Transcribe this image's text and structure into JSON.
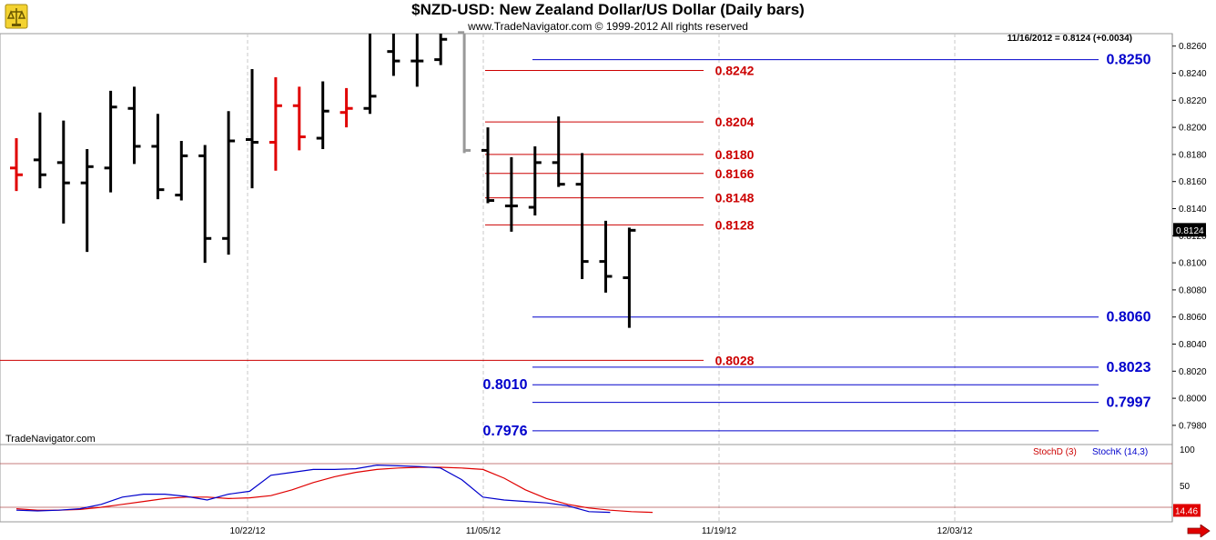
{
  "header": {
    "title": "$NZD-USD:  New Zealand Dollar/US Dollar  (Daily bars)",
    "subtitle": "www.TradeNavigator.com © 1999-2012 All rights reserved",
    "readout": "11/16/2012 = 0.8124 (+0.0034)"
  },
  "footer": {
    "credit": "TradeNavigator.com"
  },
  "legend": {
    "stoch_d": "StochD (3)",
    "stoch_k": "StochK (14,3)"
  },
  "colors": {
    "red_bar": "#e00000",
    "black_bar": "#000000",
    "red_level": "#cc0000",
    "blue_level": "#0000cc",
    "stoch_d": "#e00000",
    "stoch_k": "#0000cc"
  },
  "chart_data": {
    "type": "ohlc",
    "x_ticks": [
      "10/22/12",
      "11/05/12",
      "11/19/12",
      "12/03/12"
    ],
    "y_ticks": [
      "0.8260",
      "0.8240",
      "0.8220",
      "0.8200",
      "0.8180",
      "0.8160",
      "0.8140",
      "0.8120",
      "0.8100",
      "0.8080",
      "0.8060",
      "0.8040",
      "0.8020",
      "0.8000",
      "0.7980"
    ],
    "ylim": [
      0.7964,
      0.827
    ],
    "last_price": "0.8124",
    "bars": [
      {
        "date": "10/08/12",
        "o": 0.817,
        "h": 0.8192,
        "l": 0.8153,
        "c": 0.8165,
        "color": "red"
      },
      {
        "date": "10/09/12",
        "o": 0.8176,
        "h": 0.8211,
        "l": 0.8155,
        "c": 0.8165,
        "color": "black"
      },
      {
        "date": "10/10/12",
        "o": 0.8174,
        "h": 0.8205,
        "l": 0.8129,
        "c": 0.8159,
        "color": "black"
      },
      {
        "date": "10/11/12",
        "o": 0.8159,
        "h": 0.8184,
        "l": 0.8108,
        "c": 0.8171,
        "color": "black"
      },
      {
        "date": "10/12/12",
        "o": 0.817,
        "h": 0.8227,
        "l": 0.8152,
        "c": 0.8215,
        "color": "black"
      },
      {
        "date": "10/15/12",
        "o": 0.8214,
        "h": 0.823,
        "l": 0.8173,
        "c": 0.8186,
        "color": "black"
      },
      {
        "date": "10/16/12",
        "o": 0.8186,
        "h": 0.821,
        "l": 0.8147,
        "c": 0.8154,
        "color": "black"
      },
      {
        "date": "10/17/12",
        "o": 0.815,
        "h": 0.819,
        "l": 0.8146,
        "c": 0.8179,
        "color": "black"
      },
      {
        "date": "10/18/12",
        "o": 0.8179,
        "h": 0.8187,
        "l": 0.81,
        "c": 0.8118,
        "color": "black"
      },
      {
        "date": "10/19/12",
        "o": 0.8118,
        "h": 0.8212,
        "l": 0.8106,
        "c": 0.819,
        "color": "black"
      },
      {
        "date": "10/22/12",
        "o": 0.8191,
        "h": 0.8243,
        "l": 0.8155,
        "c": 0.8189,
        "color": "black"
      },
      {
        "date": "10/23/12",
        "o": 0.8189,
        "h": 0.8237,
        "l": 0.8168,
        "c": 0.8216,
        "color": "red"
      },
      {
        "date": "10/24/12",
        "o": 0.8216,
        "h": 0.823,
        "l": 0.8183,
        "c": 0.8193,
        "color": "red"
      },
      {
        "date": "10/25/12",
        "o": 0.8192,
        "h": 0.8234,
        "l": 0.8184,
        "c": 0.8212,
        "color": "black"
      },
      {
        "date": "10/26/12",
        "o": 0.8211,
        "h": 0.8229,
        "l": 0.82,
        "c": 0.8214,
        "color": "red"
      },
      {
        "date": "10/29/12",
        "o": 0.8214,
        "h": 0.827,
        "l": 0.821,
        "c": 0.8223,
        "color": "black"
      },
      {
        "date": "10/30/12",
        "o": 0.8256,
        "h": 0.827,
        "l": 0.8238,
        "c": 0.8249,
        "color": "black"
      },
      {
        "date": "10/31/12",
        "o": 0.8249,
        "h": 0.827,
        "l": 0.823,
        "c": 0.8249,
        "color": "black"
      },
      {
        "date": "11/01/12",
        "o": 0.825,
        "h": 0.827,
        "l": 0.8246,
        "c": 0.8265,
        "color": "black"
      },
      {
        "date": "11/02/12",
        "o": 0.827,
        "h": 0.827,
        "l": 0.8181,
        "c": 0.8183,
        "color": "gray"
      },
      {
        "date": "11/05/12",
        "o": 0.8183,
        "h": 0.82,
        "l": 0.8144,
        "c": 0.8146,
        "color": "black"
      },
      {
        "date": "11/06/12",
        "o": 0.8142,
        "h": 0.8178,
        "l": 0.8123,
        "c": 0.8142,
        "color": "black"
      },
      {
        "date": "11/07/12",
        "o": 0.8141,
        "h": 0.8186,
        "l": 0.8135,
        "c": 0.8174,
        "color": "black"
      },
      {
        "date": "11/08/12",
        "o": 0.8174,
        "h": 0.8208,
        "l": 0.8156,
        "c": 0.8158,
        "color": "black"
      },
      {
        "date": "11/09/12",
        "o": 0.8158,
        "h": 0.8181,
        "l": 0.8088,
        "c": 0.8101,
        "color": "black"
      },
      {
        "date": "11/12/12",
        "o": 0.8101,
        "h": 0.8131,
        "l": 0.8078,
        "c": 0.809,
        "color": "black"
      },
      {
        "date": "11/13/12",
        "o": 0.8089,
        "h": 0.8126,
        "l": 0.8052,
        "c": 0.8124,
        "color": "black"
      }
    ],
    "levels": [
      {
        "value": "0.8250",
        "color": "blue",
        "extent": "right"
      },
      {
        "value": "0.8242",
        "color": "red",
        "extent": "mid"
      },
      {
        "value": "0.8204",
        "color": "red",
        "extent": "mid"
      },
      {
        "value": "0.8180",
        "color": "red",
        "extent": "mid"
      },
      {
        "value": "0.8166",
        "color": "red",
        "extent": "mid"
      },
      {
        "value": "0.8148",
        "color": "red",
        "extent": "mid"
      },
      {
        "value": "0.8128",
        "color": "red",
        "extent": "mid"
      },
      {
        "value": "0.8060",
        "color": "blue",
        "extent": "right"
      },
      {
        "value": "0.8028",
        "color": "red",
        "extent": "full"
      },
      {
        "value": "0.8023",
        "color": "blue",
        "extent": "right"
      },
      {
        "value": "0.8010",
        "color": "blue",
        "extent": "left-label"
      },
      {
        "value": "0.7997",
        "color": "blue",
        "extent": "right"
      },
      {
        "value": "0.7976",
        "color": "blue",
        "extent": "left-label"
      }
    ],
    "stochastic": {
      "y_ticks": [
        "100",
        "50"
      ],
      "last_value": "14.46",
      "ref_levels": [
        80,
        20
      ],
      "stoch_d": [
        18,
        16,
        16,
        17,
        20,
        24,
        28,
        32,
        34,
        34,
        32,
        33,
        36,
        44,
        54,
        62,
        68,
        72,
        74,
        75,
        75,
        74,
        72,
        60,
        44,
        32,
        24,
        19,
        16,
        14,
        13
      ],
      "stoch_k": [
        16,
        15,
        16,
        18,
        24,
        34,
        38,
        38,
        35,
        30,
        38,
        42,
        64,
        68,
        72,
        72,
        73,
        78,
        77,
        76,
        74,
        58,
        34,
        30,
        28,
        26,
        22,
        14,
        13
      ]
    }
  }
}
